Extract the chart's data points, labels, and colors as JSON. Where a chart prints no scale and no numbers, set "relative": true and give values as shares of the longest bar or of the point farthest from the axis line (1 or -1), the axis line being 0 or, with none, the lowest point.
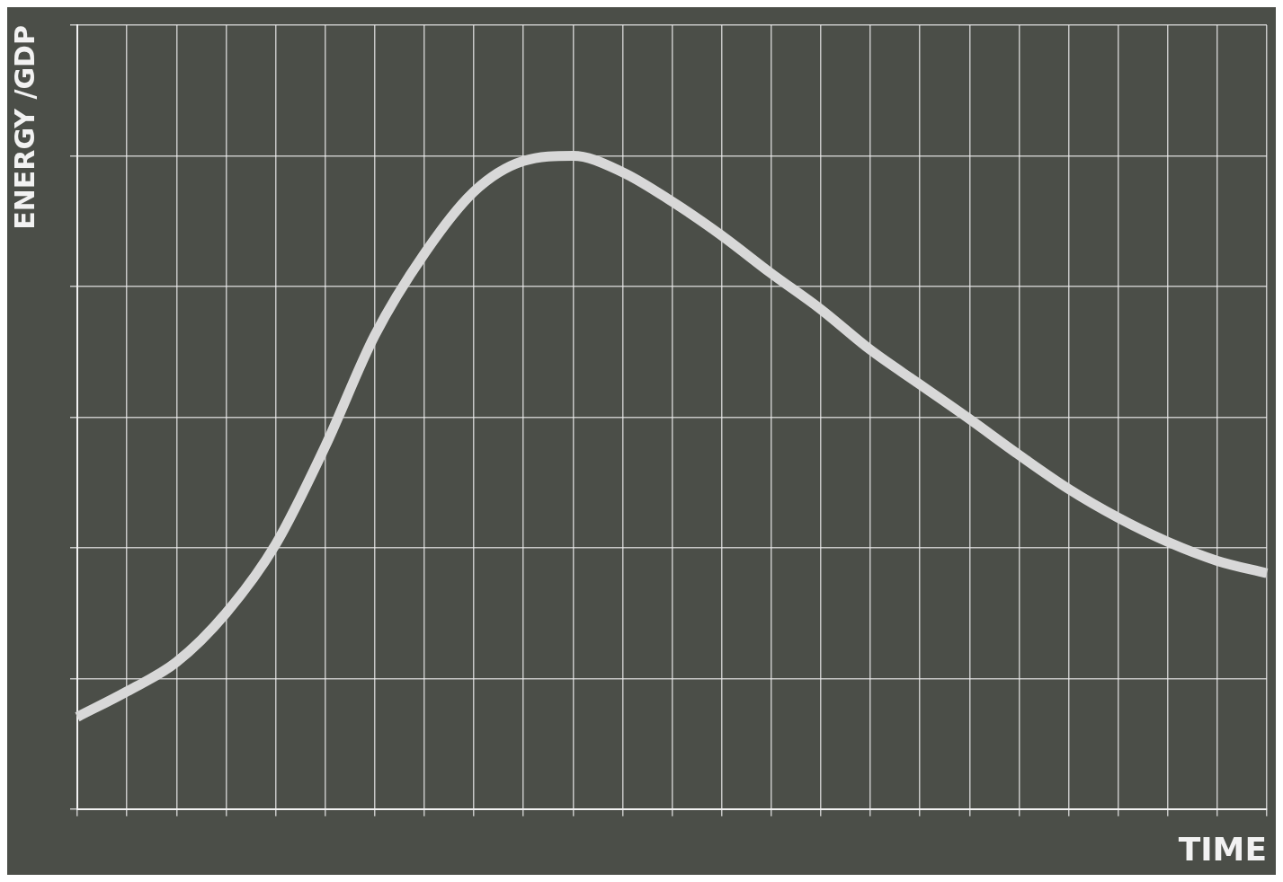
{
  "chart_data": {
    "type": "line",
    "xlabel": "TIME",
    "ylabel": "ENERGY /GDP",
    "relative": true,
    "grid": true,
    "marker": "none",
    "line_style": "solid",
    "categories": [
      null,
      null,
      null,
      null,
      null,
      null,
      null,
      null,
      null,
      null,
      null,
      null,
      null,
      null,
      null,
      null,
      null,
      null,
      null,
      null,
      null,
      null,
      null,
      null,
      null
    ],
    "series": [
      {
        "color": "#d8d8d8",
        "values": [
          0.141,
          0.18,
          0.225,
          0.3,
          0.405,
          0.555,
          0.725,
          0.85,
          0.945,
          0.992,
          1,
          0.975,
          0.93,
          0.878,
          0.82,
          0.765,
          0.703,
          0.65,
          0.597,
          0.542,
          0.49,
          0.446,
          0.409,
          0.38,
          0.361
        ]
      }
    ]
  }
}
